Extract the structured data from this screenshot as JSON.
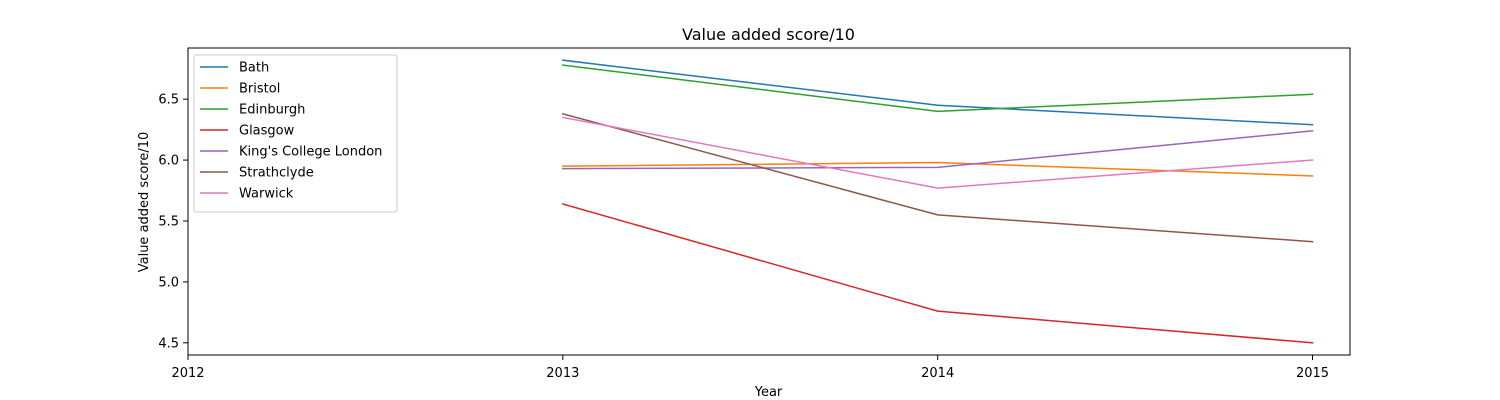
{
  "chart_data": {
    "type": "line",
    "title": "Value added score/10",
    "xlabel": "Year",
    "ylabel": "Value added score/10",
    "x": [
      2013,
      2014,
      2015
    ],
    "xticks": [
      "2012",
      "2013",
      "2014",
      "2015"
    ],
    "yticks": [
      "4.5",
      "5.0",
      "5.5",
      "6.0",
      "6.5"
    ],
    "xlim": [
      2012,
      2015.1
    ],
    "ylim": [
      4.4,
      6.92
    ],
    "grid": false,
    "legend_position": "top-left",
    "series": [
      {
        "name": "Bath",
        "color": "#1f77b4",
        "values": [
          6.82,
          6.45,
          6.29
        ]
      },
      {
        "name": "Bristol",
        "color": "#ff7f0e",
        "values": [
          5.95,
          5.98,
          5.87
        ]
      },
      {
        "name": "Edinburgh",
        "color": "#2ca02c",
        "values": [
          6.78,
          6.4,
          6.54
        ]
      },
      {
        "name": "Glasgow",
        "color": "#d62728",
        "values": [
          5.64,
          4.76,
          4.5
        ]
      },
      {
        "name": "King's College London",
        "color": "#9467bd",
        "values": [
          5.93,
          5.94,
          6.24
        ]
      },
      {
        "name": "Strathclyde",
        "color": "#8c564b",
        "values": [
          6.38,
          5.55,
          5.33
        ]
      },
      {
        "name": "Warwick",
        "color": "#e377c2",
        "values": [
          6.35,
          5.77,
          6.0
        ]
      }
    ]
  }
}
